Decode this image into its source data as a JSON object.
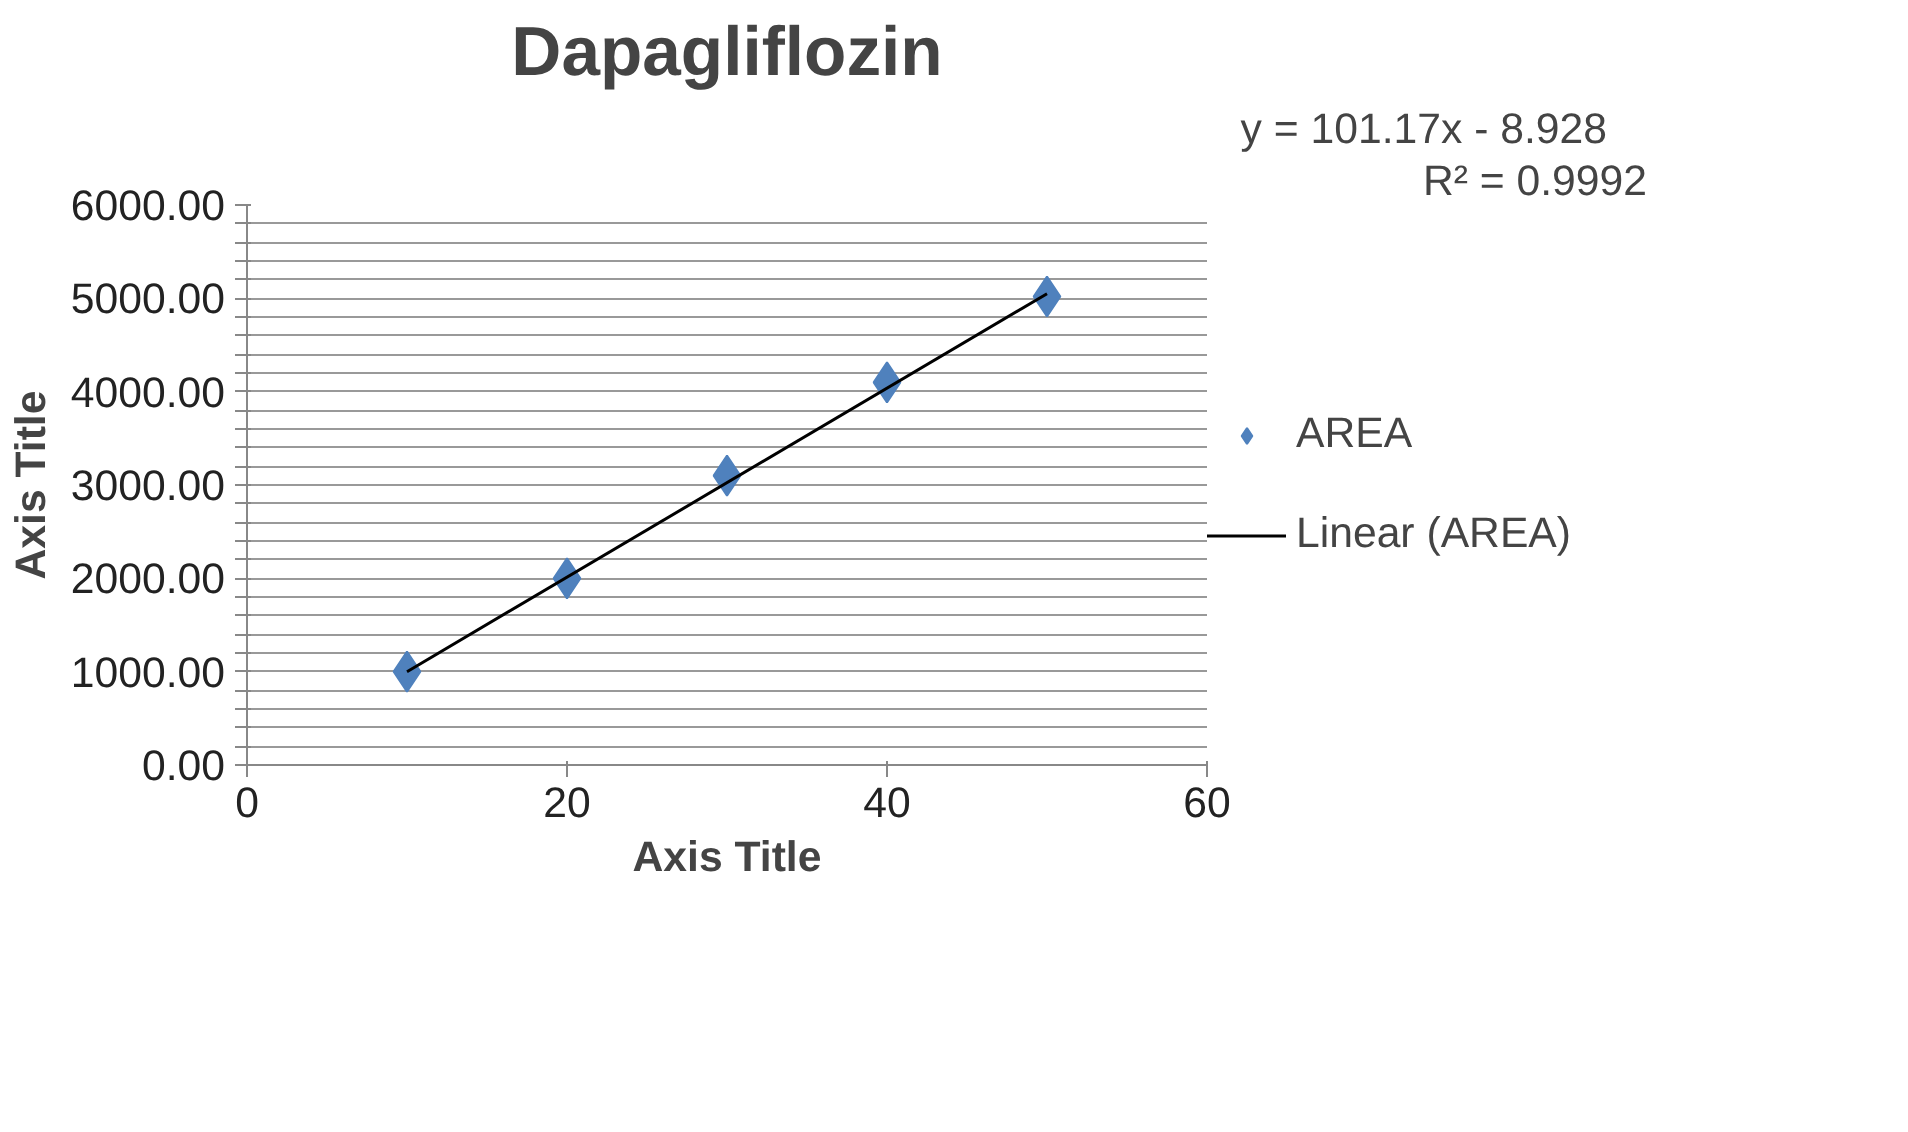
{
  "chart_data": {
    "type": "scatter",
    "title": "Dapagliflozin",
    "xlabel": "Axis Title",
    "ylabel": "Axis Title",
    "annotations": [
      "y = 101.17x - 8.928",
      "R² = 0.9992"
    ],
    "x": [
      10,
      20,
      30,
      40,
      50
    ],
    "series": [
      {
        "name": "AREA",
        "color": "#4f81bd",
        "marker": "diamond",
        "values": [
          1000,
          2000,
          3100,
          4100,
          5020
        ]
      },
      {
        "name": "Linear (AREA)",
        "color": "#000000",
        "type": "line",
        "marker": "none",
        "x": [
          10,
          50
        ],
        "values": [
          1000,
          5050
        ]
      }
    ],
    "xlim": [
      0,
      60
    ],
    "xticks": [
      0,
      20,
      40,
      60
    ],
    "ylim": [
      0,
      6000
    ],
    "yticks": [
      {
        "value": 0,
        "label": "0.00"
      },
      {
        "value": 200,
        "label": null
      },
      {
        "value": 400,
        "label": null
      },
      {
        "value": 600,
        "label": null
      },
      {
        "value": 800,
        "label": null
      },
      {
        "value": 1000,
        "label": "1000.00"
      },
      {
        "value": 1200,
        "label": null
      },
      {
        "value": 1400,
        "label": null
      },
      {
        "value": 1600,
        "label": null
      },
      {
        "value": 1800,
        "label": null
      },
      {
        "value": 2000,
        "label": "2000.00"
      },
      {
        "value": 2200,
        "label": null
      },
      {
        "value": 2400,
        "label": null
      },
      {
        "value": 2600,
        "label": null
      },
      {
        "value": 2800,
        "label": null
      },
      {
        "value": 3000,
        "label": "3000.00"
      },
      {
        "value": 3200,
        "label": null
      },
      {
        "value": 3400,
        "label": null
      },
      {
        "value": 3600,
        "label": null
      },
      {
        "value": 3800,
        "label": null
      },
      {
        "value": 4000,
        "label": "4000.00"
      },
      {
        "value": 4200,
        "label": null
      },
      {
        "value": 4400,
        "label": null
      },
      {
        "value": 4600,
        "label": null
      },
      {
        "value": 4800,
        "label": null
      },
      {
        "value": 5000,
        "label": "5000.00"
      },
      {
        "value": 5200,
        "label": null
      },
      {
        "value": 5400,
        "label": null
      },
      {
        "value": 5600,
        "label": null
      },
      {
        "value": 5800,
        "label": null
      },
      {
        "value": 6000,
        "label": "6000.00"
      }
    ],
    "grid": "y",
    "legend": "right"
  }
}
